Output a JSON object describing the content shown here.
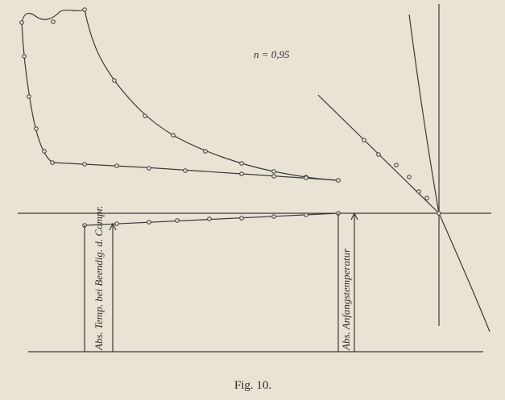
{
  "diagram": {
    "exponent_label": "n = 0,95",
    "left_label": "Abs. Temp. bei Beendig. d. Compr.",
    "right_label": "Abs. Anfangstemperatur",
    "caption": "Fig. 10."
  }
}
